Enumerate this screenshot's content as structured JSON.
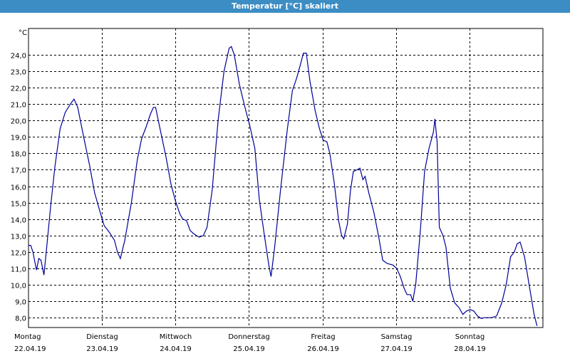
{
  "window": {
    "title": "Temperatur [°C] skaliert"
  },
  "chart_data": {
    "type": "line",
    "title": "Temperatur [°C] skaliert",
    "ylabel": "°C",
    "xlabel": "",
    "ylim": [
      7.4,
      25.6
    ],
    "xlim": [
      0,
      7
    ],
    "grid": true,
    "line_color": "#000099",
    "y_ticks": [
      "24,0",
      "23,0",
      "22,0",
      "21,0",
      "20,0",
      "19,0",
      "18,0",
      "17,0",
      "16,0",
      "15,0",
      "14,0",
      "13,0",
      "12,0",
      "11,0",
      "10,0",
      "9,0",
      "8,0"
    ],
    "y_tick_values": [
      24,
      23,
      22,
      21,
      20,
      19,
      18,
      17,
      16,
      15,
      14,
      13,
      12,
      11,
      10,
      9,
      8
    ],
    "x_ticks": [
      {
        "day": "Montag",
        "date": "22.04.19"
      },
      {
        "day": "Dienstag",
        "date": "23.04.19"
      },
      {
        "day": "Mittwoch",
        "date": "24.04.19"
      },
      {
        "day": "Donnerstag",
        "date": "25.04.19"
      },
      {
        "day": "Freitag",
        "date": "26.04.19"
      },
      {
        "day": "Samstag",
        "date": "27.04.19"
      },
      {
        "day": "Sonntag",
        "date": "28.04.19"
      }
    ],
    "series": [
      {
        "x_unit": "days since 22.04.19 00:00",
        "points": [
          [
            0.0,
            12.4
          ],
          [
            0.03,
            12.4
          ],
          [
            0.06,
            12.0
          ],
          [
            0.09,
            11.3
          ],
          [
            0.11,
            10.9
          ],
          [
            0.14,
            11.6
          ],
          [
            0.17,
            11.5
          ],
          [
            0.21,
            10.6
          ],
          [
            0.25,
            12.4
          ],
          [
            0.3,
            14.7
          ],
          [
            0.36,
            17.2
          ],
          [
            0.43,
            19.5
          ],
          [
            0.5,
            20.5
          ],
          [
            0.57,
            21.0
          ],
          [
            0.62,
            21.3
          ],
          [
            0.67,
            20.8
          ],
          [
            0.75,
            19.0
          ],
          [
            0.83,
            17.3
          ],
          [
            0.9,
            15.6
          ],
          [
            0.97,
            14.5
          ],
          [
            1.03,
            13.6
          ],
          [
            1.1,
            13.2
          ],
          [
            1.17,
            12.7
          ],
          [
            1.21,
            12.0
          ],
          [
            1.25,
            11.6
          ],
          [
            1.31,
            12.7
          ],
          [
            1.4,
            15.0
          ],
          [
            1.48,
            17.6
          ],
          [
            1.54,
            18.9
          ],
          [
            1.6,
            19.6
          ],
          [
            1.66,
            20.4
          ],
          [
            1.7,
            20.8
          ],
          [
            1.73,
            20.8
          ],
          [
            1.79,
            19.5
          ],
          [
            1.87,
            17.8
          ],
          [
            1.94,
            16.1
          ],
          [
            2.0,
            15.1
          ],
          [
            2.06,
            14.3
          ],
          [
            2.1,
            14.0
          ],
          [
            2.15,
            13.9
          ],
          [
            2.2,
            13.3
          ],
          [
            2.25,
            13.1
          ],
          [
            2.32,
            12.9
          ],
          [
            2.38,
            13.0
          ],
          [
            2.43,
            13.5
          ],
          [
            2.5,
            15.8
          ],
          [
            2.58,
            20.0
          ],
          [
            2.66,
            23.0
          ],
          [
            2.73,
            24.4
          ],
          [
            2.76,
            24.5
          ],
          [
            2.8,
            24.0
          ],
          [
            2.87,
            22.2
          ],
          [
            2.94,
            20.9
          ],
          [
            3.01,
            19.7
          ],
          [
            3.08,
            18.3
          ],
          [
            3.14,
            15.2
          ],
          [
            3.21,
            13.0
          ],
          [
            3.27,
            11.2
          ],
          [
            3.3,
            10.5
          ],
          [
            3.35,
            12.3
          ],
          [
            3.43,
            15.8
          ],
          [
            3.52,
            19.4
          ],
          [
            3.59,
            21.8
          ],
          [
            3.65,
            22.6
          ],
          [
            3.7,
            23.4
          ],
          [
            3.74,
            24.1
          ],
          [
            3.78,
            24.1
          ],
          [
            3.83,
            22.4
          ],
          [
            3.9,
            20.6
          ],
          [
            3.96,
            19.5
          ],
          [
            4.01,
            18.8
          ],
          [
            4.06,
            18.7
          ],
          [
            4.1,
            18.0
          ],
          [
            4.16,
            16.2
          ],
          [
            4.22,
            13.9
          ],
          [
            4.26,
            13.0
          ],
          [
            4.29,
            12.8
          ],
          [
            4.34,
            13.7
          ],
          [
            4.38,
            15.7
          ],
          [
            4.42,
            16.9
          ],
          [
            4.47,
            17.0
          ],
          [
            4.51,
            17.1
          ],
          [
            4.55,
            16.4
          ],
          [
            4.58,
            16.6
          ],
          [
            4.63,
            15.6
          ],
          [
            4.7,
            14.4
          ],
          [
            4.77,
            12.8
          ],
          [
            4.82,
            11.5
          ],
          [
            4.88,
            11.3
          ],
          [
            4.96,
            11.2
          ],
          [
            5.01,
            11.0
          ],
          [
            5.06,
            10.5
          ],
          [
            5.11,
            9.8
          ],
          [
            5.15,
            9.4
          ],
          [
            5.2,
            9.4
          ],
          [
            5.23,
            9.0
          ],
          [
            5.27,
            10.1
          ],
          [
            5.33,
            13.2
          ],
          [
            5.39,
            16.9
          ],
          [
            5.45,
            18.3
          ],
          [
            5.51,
            19.3
          ],
          [
            5.53,
            20.1
          ],
          [
            5.56,
            18.7
          ],
          [
            5.59,
            13.5
          ],
          [
            5.64,
            13.0
          ],
          [
            5.68,
            12.3
          ],
          [
            5.74,
            9.8
          ],
          [
            5.8,
            8.9
          ],
          [
            5.86,
            8.6
          ],
          [
            5.91,
            8.2
          ],
          [
            5.96,
            8.4
          ],
          [
            6.01,
            8.5
          ],
          [
            6.06,
            8.4
          ],
          [
            6.11,
            8.1
          ],
          [
            6.16,
            7.95
          ],
          [
            6.2,
            8.0
          ],
          [
            6.25,
            8.0
          ],
          [
            6.3,
            8.0
          ],
          [
            6.37,
            8.1
          ],
          [
            6.44,
            8.9
          ],
          [
            6.5,
            10.0
          ],
          [
            6.56,
            11.7
          ],
          [
            6.61,
            12.0
          ],
          [
            6.65,
            12.5
          ],
          [
            6.69,
            12.6
          ],
          [
            6.75,
            11.7
          ],
          [
            6.82,
            9.8
          ],
          [
            6.88,
            8.2
          ],
          [
            6.92,
            7.5
          ]
        ]
      }
    ]
  }
}
